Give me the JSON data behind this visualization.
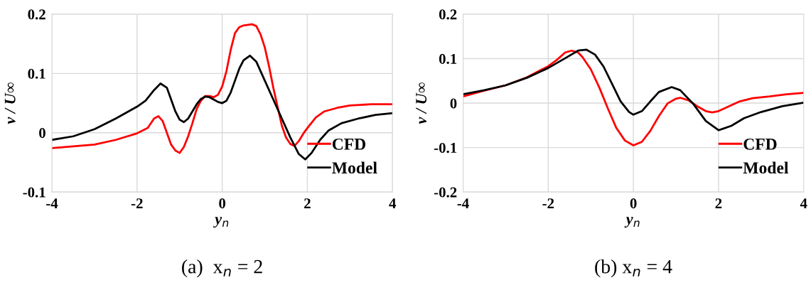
{
  "chart_data": [
    {
      "type": "line",
      "xlabel": "y$_{n}$",
      "ylabel": "v / U∞",
      "annotations": [
        "(a)  x$_{n}$ = 2"
      ],
      "xlim": [
        -4,
        4
      ],
      "xticks": [
        -4,
        -2,
        0,
        2,
        4
      ],
      "ylim": [
        -0.1,
        0.2
      ],
      "yticks": [
        -0.1,
        0,
        0.1,
        0.2
      ],
      "grid": true,
      "legend": "bottom right",
      "series": [
        {
          "name": "CFD",
          "color": "#ff0000",
          "x": [
            -4,
            -3,
            -2.5,
            -2,
            -1.75,
            -1.6,
            -1.5,
            -1.4,
            -1.3,
            -1.2,
            -1.1,
            -1.0,
            -0.9,
            -0.8,
            -0.7,
            -0.6,
            -0.5,
            -0.4,
            -0.3,
            -0.2,
            -0.1,
            0,
            0.1,
            0.2,
            0.3,
            0.4,
            0.5,
            0.7,
            0.8,
            0.9,
            1.0,
            1.1,
            1.2,
            1.3,
            1.4,
            1.5,
            1.6,
            1.7,
            1.8,
            1.9,
            2.0,
            2.2,
            2.4,
            2.7,
            3,
            3.5,
            4
          ],
          "values": [
            -0.026,
            -0.02,
            -0.012,
            -0.001,
            0.008,
            0.024,
            0.028,
            0.02,
            0,
            -0.02,
            -0.03,
            -0.034,
            -0.024,
            -0.006,
            0.016,
            0.04,
            0.054,
            0.062,
            0.062,
            0.06,
            0.064,
            0.078,
            0.104,
            0.14,
            0.168,
            0.178,
            0.181,
            0.183,
            0.18,
            0.166,
            0.144,
            0.112,
            0.076,
            0.044,
            0.012,
            -0.008,
            -0.019,
            -0.022,
            -0.014,
            -0.002,
            0.008,
            0.026,
            0.036,
            0.042,
            0.046,
            0.048,
            0.048
          ]
        },
        {
          "name": "Model",
          "color": "#000000",
          "x": [
            -4,
            -3.5,
            -3,
            -2.5,
            -2,
            -1.8,
            -1.6,
            -1.45,
            -1.3,
            -1.2,
            -1.1,
            -1.0,
            -0.9,
            -0.8,
            -0.7,
            -0.6,
            -0.5,
            -0.4,
            -0.3,
            -0.2,
            -0.1,
            0,
            0.1,
            0.2,
            0.3,
            0.4,
            0.5,
            0.65,
            0.8,
            1.0,
            1.2,
            1.4,
            1.6,
            1.8,
            1.95,
            2.1,
            2.3,
            2.5,
            2.8,
            3.2,
            3.6,
            4
          ],
          "values": [
            -0.012,
            -0.006,
            0.006,
            0.024,
            0.044,
            0.054,
            0.072,
            0.083,
            0.076,
            0.056,
            0.036,
            0.022,
            0.018,
            0.024,
            0.036,
            0.048,
            0.057,
            0.061,
            0.06,
            0.056,
            0.052,
            0.05,
            0.054,
            0.068,
            0.088,
            0.108,
            0.122,
            0.13,
            0.12,
            0.088,
            0.056,
            0.024,
            -0.008,
            -0.036,
            -0.045,
            -0.034,
            -0.012,
            0.004,
            0.016,
            0.024,
            0.03,
            0.033
          ]
        }
      ]
    },
    {
      "type": "line",
      "xlabel": "y$_{n}$",
      "ylabel": "v / U∞",
      "annotations": [
        "(b) x$_{n}$ = 4"
      ],
      "xlim": [
        -4,
        4
      ],
      "xticks": [
        -4,
        -2,
        0,
        2,
        4
      ],
      "ylim": [
        -0.2,
        0.2
      ],
      "yticks": [
        -0.2,
        -0.1,
        0,
        0.1,
        0.2
      ],
      "grid": true,
      "legend": "bottom right",
      "series": [
        {
          "name": "CFD",
          "color": "#ff0000",
          "x": [
            -4,
            -3.5,
            -3,
            -2.5,
            -2,
            -1.8,
            -1.6,
            -1.45,
            -1.3,
            -1.2,
            -1.0,
            -0.8,
            -0.6,
            -0.4,
            -0.2,
            0,
            0.2,
            0.4,
            0.6,
            0.8,
            1.0,
            1.1,
            1.3,
            1.5,
            1.7,
            1.85,
            2.0,
            2.2,
            2.5,
            2.8,
            3.2,
            3.6,
            4
          ],
          "values": [
            0.015,
            0.028,
            0.04,
            0.058,
            0.083,
            0.097,
            0.114,
            0.118,
            0.114,
            0.104,
            0.076,
            0.035,
            -0.012,
            -0.056,
            -0.084,
            -0.095,
            -0.087,
            -0.062,
            -0.029,
            -0.001,
            0.01,
            0.012,
            0.006,
            -0.007,
            -0.018,
            -0.021,
            -0.018,
            -0.009,
            0.004,
            0.011,
            0.015,
            0.02,
            0.023
          ]
        },
        {
          "name": "Model",
          "color": "#000000",
          "x": [
            -4,
            -3.5,
            -3,
            -2.5,
            -2,
            -1.6,
            -1.3,
            -1.1,
            -0.9,
            -0.7,
            -0.5,
            -0.3,
            -0.1,
            0,
            0.2,
            0.4,
            0.6,
            0.9,
            1.1,
            1.4,
            1.7,
            2.0,
            2.3,
            2.6,
            3.0,
            3.5,
            4
          ],
          "values": [
            0.02,
            0.029,
            0.04,
            0.057,
            0.079,
            0.101,
            0.118,
            0.12,
            0.109,
            0.082,
            0.043,
            0.004,
            -0.02,
            -0.026,
            -0.018,
            0.004,
            0.025,
            0.036,
            0.029,
            -0.001,
            -0.04,
            -0.061,
            -0.051,
            -0.034,
            -0.02,
            -0.007,
            0.001
          ]
        }
      ]
    }
  ]
}
